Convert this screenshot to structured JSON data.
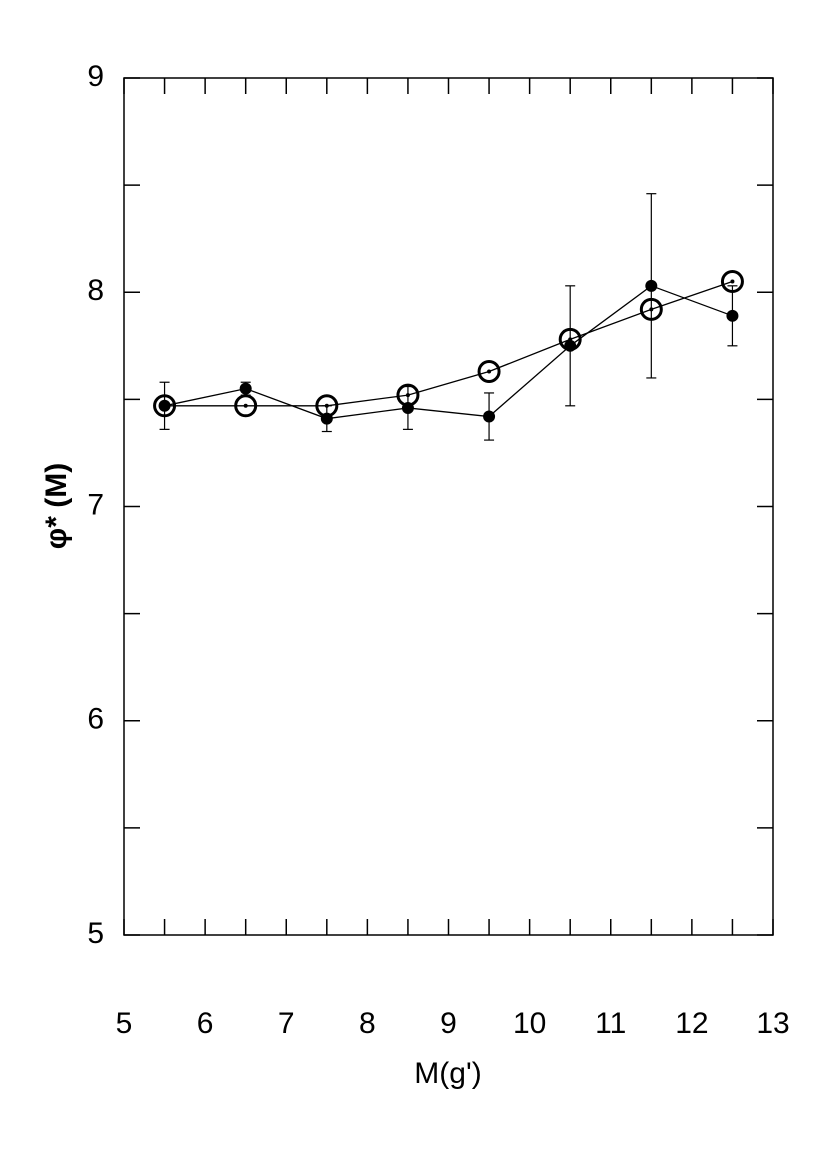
{
  "chart_data": {
    "type": "line",
    "x_label": "M(g')",
    "y_label": "φ* (M)",
    "x": [
      5.5,
      6.5,
      7.5,
      8.5,
      9.5,
      10.5,
      11.5,
      12.5
    ],
    "series": [
      {
        "color": "#000000",
        "marker": "filled",
        "values": [
          7.47,
          7.55,
          7.41,
          7.46,
          7.42,
          7.75,
          8.03,
          7.89
        ],
        "errors": [
          0.11,
          0.03,
          0.06,
          0.1,
          0.11,
          0.28,
          0.43,
          0.14
        ]
      },
      {
        "color": "#000000",
        "marker": "open",
        "values": [
          7.47,
          7.47,
          7.47,
          7.52,
          7.63,
          7.78,
          7.92,
          8.05
        ]
      }
    ],
    "xlim": [
      5,
      13
    ],
    "ylim": [
      5,
      9
    ],
    "xticks": [
      5,
      6,
      7,
      8,
      9,
      10,
      11,
      12,
      13
    ],
    "yticks": [
      5,
      6,
      7,
      8,
      9
    ],
    "xminorticks": [
      5.5,
      6.5,
      7.5,
      8.5,
      9.5,
      10.5,
      11.5,
      12.5
    ],
    "yminorticks": [
      5.5,
      6.5,
      7.5,
      8.5
    ]
  }
}
